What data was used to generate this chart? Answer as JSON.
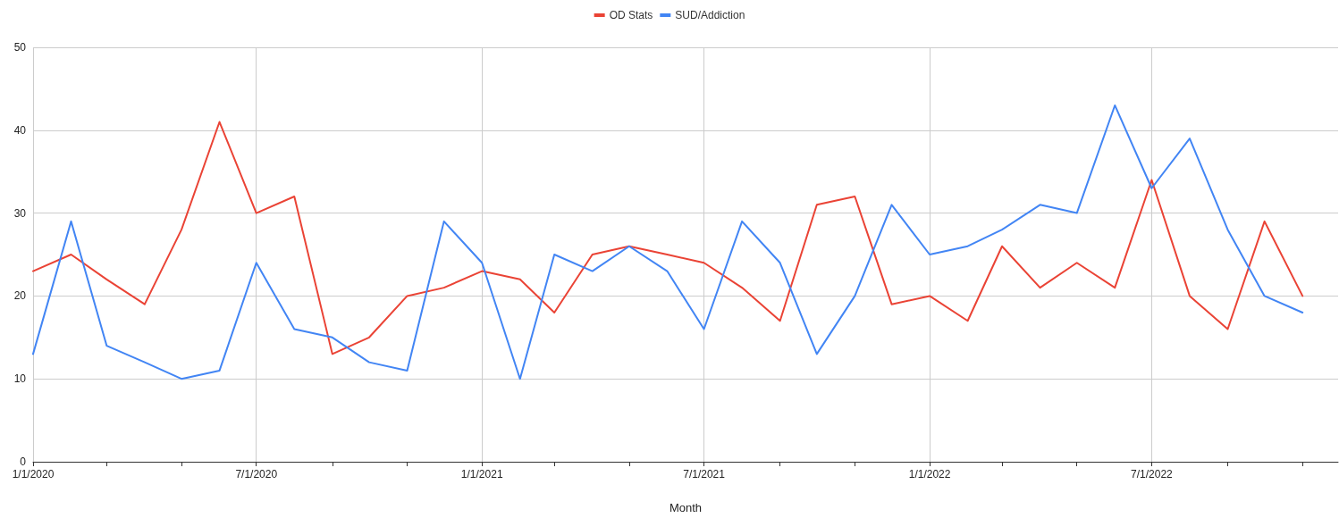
{
  "chart_data": {
    "type": "line",
    "xlabel": "Month",
    "x": [
      "2020-01",
      "2020-02",
      "2020-03",
      "2020-04",
      "2020-05",
      "2020-06",
      "2020-07",
      "2020-08",
      "2020-09",
      "2020-10",
      "2020-11",
      "2020-12",
      "2021-01",
      "2021-02",
      "2021-03",
      "2021-04",
      "2021-05",
      "2021-06",
      "2021-07",
      "2021-08",
      "2021-09",
      "2021-10",
      "2021-11",
      "2021-12",
      "2022-01",
      "2022-02",
      "2022-03",
      "2022-04",
      "2022-05",
      "2022-06",
      "2022-07",
      "2022-08",
      "2022-09",
      "2022-10",
      "2022-11"
    ],
    "series": [
      {
        "name": "OD Stats",
        "color": "#ea4335",
        "values": [
          23,
          25,
          22,
          19,
          28,
          41,
          30,
          32,
          13,
          15,
          20,
          21,
          23,
          22,
          18,
          25,
          26,
          25,
          24,
          21,
          17,
          31,
          32,
          19,
          20,
          17,
          26,
          21,
          24,
          21,
          34,
          20,
          16,
          29,
          20
        ]
      },
      {
        "name": "SUD/Addiction",
        "color": "#4285f4",
        "values": [
          13,
          29,
          14,
          12,
          10,
          11,
          24,
          16,
          15,
          12,
          11,
          29,
          24,
          10,
          25,
          23,
          26,
          23,
          16,
          29,
          24,
          13,
          20,
          31,
          25,
          26,
          28,
          31,
          30,
          43,
          33,
          39,
          28,
          20,
          18
        ]
      }
    ],
    "xlim": [
      "2020-01-01",
      "2022-11-30"
    ],
    "xticks": [
      {
        "value": "2020-01-01",
        "label": "1/1/2020"
      },
      {
        "value": "2020-03-01",
        "label": null
      },
      {
        "value": "2020-05-01",
        "label": null
      },
      {
        "value": "2020-07-01",
        "label": "7/1/2020"
      },
      {
        "value": "2020-09-01",
        "label": null
      },
      {
        "value": "2020-11-01",
        "label": null
      },
      {
        "value": "2021-01-01",
        "label": "1/1/2021"
      },
      {
        "value": "2021-03-01",
        "label": null
      },
      {
        "value": "2021-05-01",
        "label": null
      },
      {
        "value": "2021-07-01",
        "label": "7/1/2021"
      },
      {
        "value": "2021-09-01",
        "label": null
      },
      {
        "value": "2021-11-01",
        "label": null
      },
      {
        "value": "2022-01-01",
        "label": "1/1/2022"
      },
      {
        "value": "2022-03-01",
        "label": null
      },
      {
        "value": "2022-05-01",
        "label": null
      },
      {
        "value": "2022-07-01",
        "label": "7/1/2022"
      },
      {
        "value": "2022-09-01",
        "label": null
      },
      {
        "value": "2022-11-01",
        "label": null
      }
    ],
    "ylim": [
      0,
      50
    ],
    "yticks": [
      0,
      10,
      20,
      30,
      40,
      50
    ],
    "grid": true,
    "legend": "top",
    "marker": "none",
    "line_style": "solid"
  }
}
